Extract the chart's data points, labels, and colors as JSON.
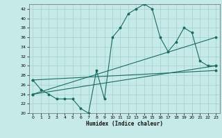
{
  "title": "",
  "xlabel": "Humidex (Indice chaleur)",
  "ylabel": "",
  "bg_color": "#c5eae7",
  "grid_color": "#a8d5d1",
  "line_color": "#1a6b62",
  "xlim": [
    -0.5,
    23.5
  ],
  "ylim": [
    20,
    43
  ],
  "yticks": [
    20,
    22,
    24,
    26,
    28,
    30,
    32,
    34,
    36,
    38,
    40,
    42
  ],
  "xticks": [
    0,
    1,
    2,
    3,
    4,
    5,
    6,
    7,
    8,
    9,
    10,
    11,
    12,
    13,
    14,
    15,
    16,
    17,
    18,
    19,
    20,
    21,
    22,
    23
  ],
  "series1_x": [
    0,
    1,
    2,
    3,
    4,
    5,
    6,
    7,
    8,
    9,
    10,
    11,
    12,
    13,
    14,
    15,
    16,
    17,
    18,
    19,
    20,
    21,
    22,
    23
  ],
  "series1_y": [
    27,
    25,
    24,
    23,
    23,
    23,
    21,
    20,
    29,
    23,
    36,
    38,
    41,
    42,
    43,
    42,
    36,
    33,
    35,
    38,
    37,
    31,
    30,
    30
  ],
  "series2_x": [
    0,
    23
  ],
  "series2_y": [
    24,
    30
  ],
  "series3_x": [
    0,
    23
  ],
  "series3_y": [
    27,
    29
  ],
  "series4_x": [
    0,
    23
  ],
  "series4_y": [
    24,
    36
  ]
}
